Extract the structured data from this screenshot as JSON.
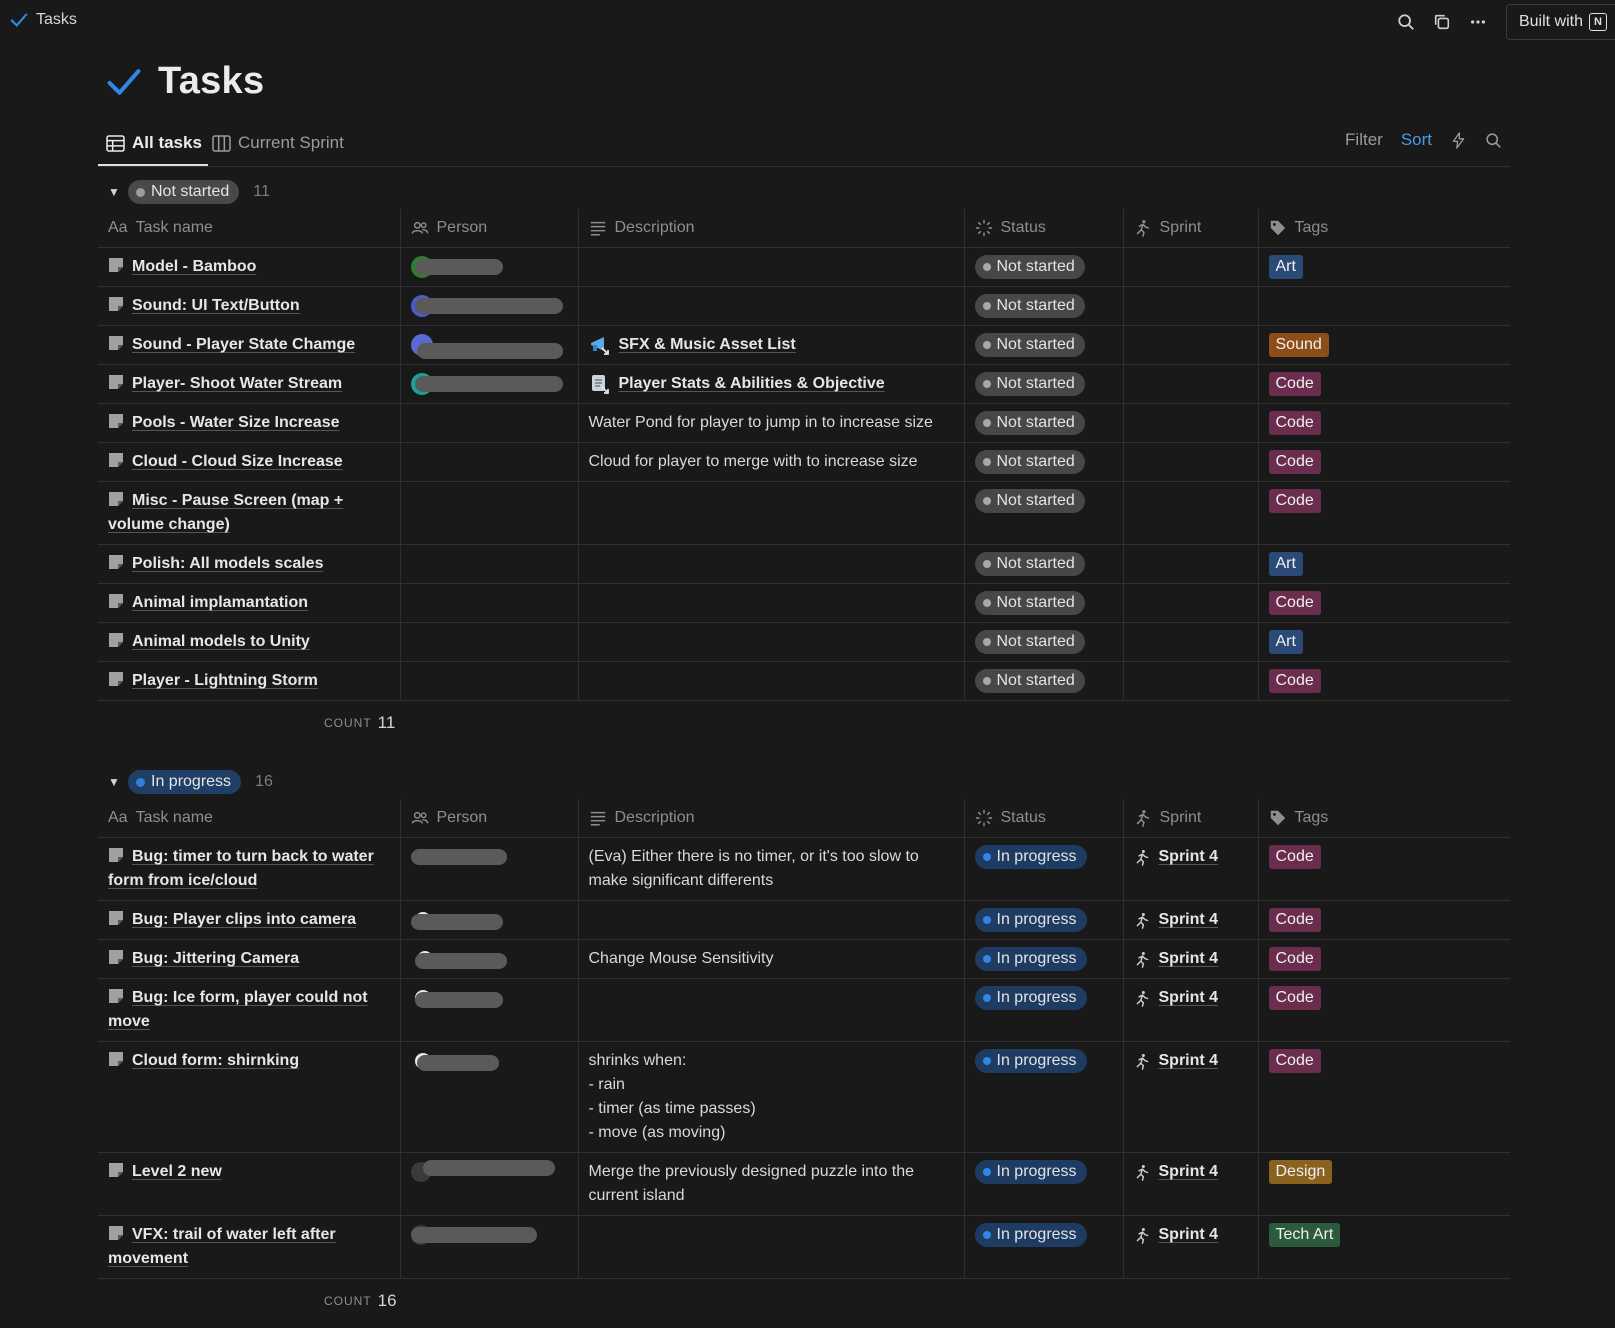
{
  "breadcrumb": {
    "title": "Tasks"
  },
  "topbar": {
    "built_with": "Built with"
  },
  "page": {
    "title": "Tasks"
  },
  "views": {
    "tabs": [
      {
        "label": "All tasks",
        "icon": "table-icon",
        "active": true
      },
      {
        "label": "Current Sprint",
        "icon": "board-icon",
        "active": false
      }
    ],
    "filter_label": "Filter",
    "sort_label": "Sort"
  },
  "columns": {
    "task": "Task name",
    "task_prefix": "Aa",
    "person": "Person",
    "description": "Description",
    "status": "Status",
    "sprint": "Sprint",
    "tags": "Tags"
  },
  "colors": {
    "tag_art": "#2b4a78",
    "tag_sound": "#8c4d17",
    "tag_code": "#6b2d4d",
    "tag_design": "#8a6220",
    "tag_tech_art": "#2c5a3c",
    "status_not_started": "#474747",
    "status_in_progress": "#1e3c62",
    "accent": "#2f86e6"
  },
  "groups": [
    {
      "label": "Not started",
      "count": "11",
      "count_label": "COUNT",
      "footer_count": "11",
      "rows": [
        {
          "name": "Model - Bamboo",
          "description": "",
          "status": "Not started",
          "sprint": "",
          "tag": "Art"
        },
        {
          "name": "Sound: UI Text/Button",
          "description": "",
          "status": "Not started",
          "sprint": "",
          "tag": ""
        },
        {
          "name": "Sound - Player State Chamge",
          "description": "SFX & Music Asset List",
          "status": "Not started",
          "sprint": "",
          "tag": "Sound"
        },
        {
          "name": "Player- Shoot Water Stream",
          "description": "Player Stats & Abilities & Objective",
          "status": "Not started",
          "sprint": "",
          "tag": "Code"
        },
        {
          "name": "Pools - Water Size Increase",
          "description": "Water Pond for player to jump in to increase size",
          "status": "Not started",
          "sprint": "",
          "tag": "Code"
        },
        {
          "name": "Cloud - Cloud Size Increase",
          "description": "Cloud for player to merge with to increase size",
          "status": "Not started",
          "sprint": "",
          "tag": "Code"
        },
        {
          "name": "Misc - Pause Screen (map + volume change)",
          "description": "",
          "status": "Not started",
          "sprint": "",
          "tag": "Code"
        },
        {
          "name": "Polish: All models scales",
          "description": "",
          "status": "Not started",
          "sprint": "",
          "tag": "Art"
        },
        {
          "name": "Animal implamantation",
          "description": "",
          "status": "Not started",
          "sprint": "",
          "tag": "Code"
        },
        {
          "name": "Animal models to Unity",
          "description": "",
          "status": "Not started",
          "sprint": "",
          "tag": "Art"
        },
        {
          "name": "Player - Lightning Storm",
          "description": "",
          "status": "Not started",
          "sprint": "",
          "tag": "Code"
        }
      ]
    },
    {
      "label": "In progress",
      "count": "16",
      "count_label": "COUNT",
      "footer_count": "16",
      "rows": [
        {
          "name": "Bug: timer to turn back to water form from ice/cloud",
          "description": "(Eva) Either there is no timer, or it's too slow to make significant differents",
          "status": "In progress",
          "sprint": "Sprint 4",
          "tag": "Code"
        },
        {
          "name": "Bug: Player clips into camera",
          "description": "",
          "status": "In progress",
          "sprint": "Sprint 4",
          "tag": "Code"
        },
        {
          "name": "Bug: Jittering Camera",
          "description": "Change Mouse Sensitivity",
          "status": "In progress",
          "sprint": "Sprint 4",
          "tag": "Code"
        },
        {
          "name": "Bug: Ice form, player could not move",
          "description": "",
          "status": "In progress",
          "sprint": "Sprint 4",
          "tag": "Code"
        },
        {
          "name": "Cloud form: shirnking",
          "description": "shrinks when:\n- rain\n- timer (as time passes)\n- move (as moving)",
          "status": "In progress",
          "sprint": "Sprint 4",
          "tag": "Code"
        },
        {
          "name": "Level 2 new",
          "description": "Merge the previously designed puzzle into the current island",
          "status": "In progress",
          "sprint": "Sprint 4",
          "tag": "Design"
        },
        {
          "name": "VFX: trail of water left after movement",
          "description": "",
          "status": "In progress",
          "sprint": "Sprint 4",
          "tag": "Tech Art"
        }
      ]
    }
  ]
}
